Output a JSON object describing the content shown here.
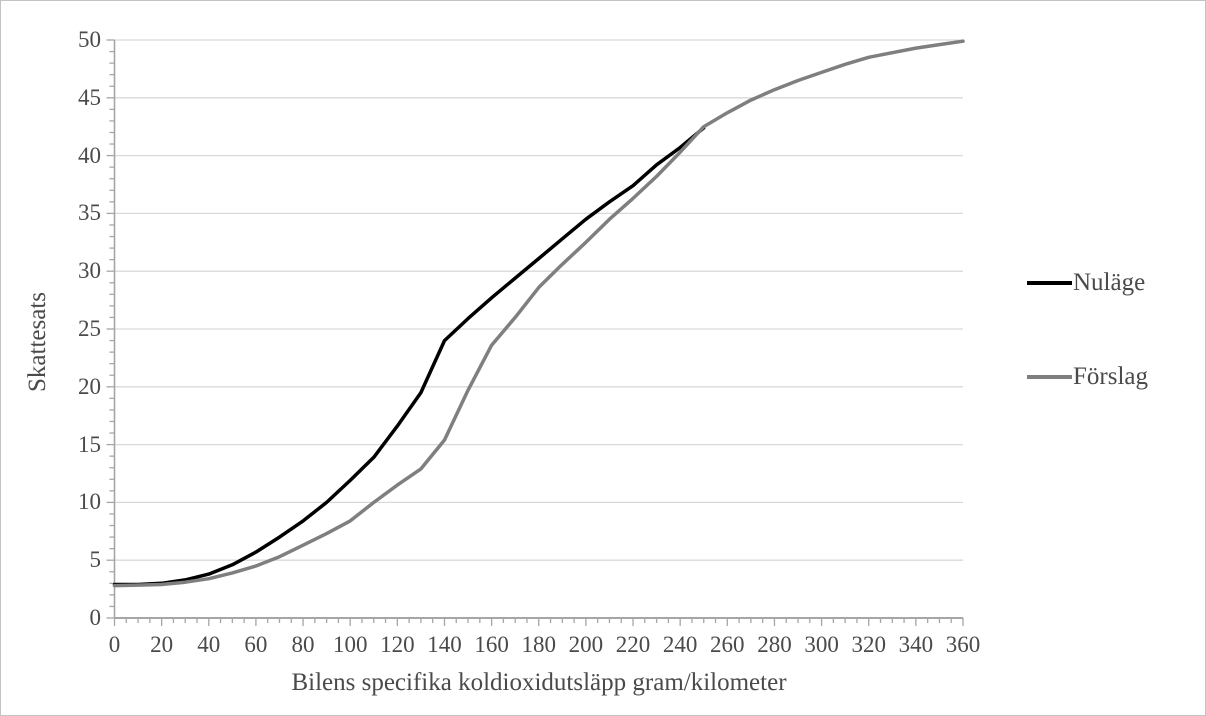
{
  "chart_data": {
    "type": "line",
    "title": "",
    "xlabel": "Bilens specifika koldioxidutsläpp gram/kilometer",
    "ylabel": "Skattesats",
    "xlim": [
      0,
      360
    ],
    "ylim": [
      0,
      50
    ],
    "x_major_tick_step": 20,
    "x_minor_tick_step": 5,
    "y_major_tick_step": 5,
    "y_minor_tick_step": 1,
    "x_tick_labels": [
      "0",
      "20",
      "40",
      "60",
      "80",
      "100",
      "120",
      "140",
      "160",
      "180",
      "200",
      "220",
      "240",
      "260",
      "280",
      "300",
      "320",
      "340",
      "360"
    ],
    "y_tick_labels": [
      "0",
      "5",
      "10",
      "15",
      "20",
      "25",
      "30",
      "35",
      "40",
      "45",
      "50"
    ],
    "grid": "horizontal-major-only",
    "legend_position": "right",
    "series": [
      {
        "name": "Nuläge",
        "color": "#000000",
        "line_width": 3.5,
        "x": [
          0,
          10,
          20,
          30,
          40,
          50,
          60,
          70,
          80,
          90,
          100,
          110,
          120,
          130,
          140,
          150,
          160,
          170,
          180,
          190,
          200,
          210,
          220,
          230,
          240,
          250
        ],
        "y": [
          2.9,
          2.9,
          3.0,
          3.3,
          3.8,
          4.6,
          5.7,
          7.0,
          8.4,
          10.0,
          11.9,
          13.9,
          16.6,
          19.5,
          24.0,
          25.9,
          27.7,
          29.4,
          31.1,
          32.8,
          34.5,
          36.0,
          37.4,
          39.2,
          40.7,
          42.4
        ]
      },
      {
        "name": "Förslag",
        "color": "#7f7f7f",
        "line_width": 3.5,
        "x": [
          0,
          10,
          20,
          30,
          40,
          50,
          60,
          70,
          80,
          90,
          100,
          110,
          120,
          130,
          140,
          150,
          160,
          170,
          180,
          190,
          200,
          210,
          220,
          230,
          240,
          250,
          260,
          270,
          280,
          290,
          300,
          310,
          320,
          330,
          340,
          350,
          360
        ],
        "y": [
          2.8,
          2.85,
          2.9,
          3.1,
          3.4,
          3.9,
          4.5,
          5.3,
          6.3,
          7.3,
          8.4,
          10.0,
          11.5,
          12.9,
          15.4,
          19.7,
          23.6,
          26.0,
          28.6,
          30.6,
          32.5,
          34.5,
          36.3,
          38.2,
          40.3,
          42.5,
          43.7,
          44.8,
          45.7,
          46.5,
          47.2,
          47.9,
          48.5,
          48.9,
          49.3,
          49.6,
          49.9
        ]
      }
    ]
  },
  "colors": {
    "gridline": "#d9d9d9",
    "axis_line": "#a6a6a6",
    "tick_mark": "#a6a6a6",
    "text": "#4a4a4a",
    "background": "#ffffff"
  }
}
